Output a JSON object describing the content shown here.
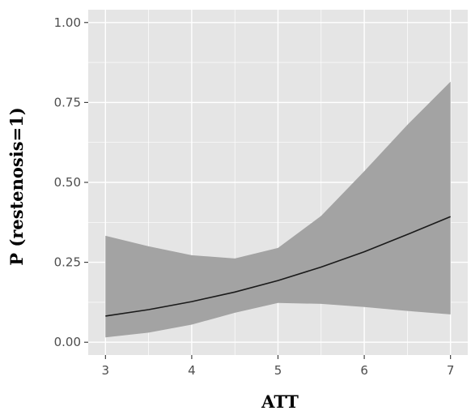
{
  "chart_data": {
    "type": "line",
    "title": "",
    "xlabel": "ATT",
    "ylabel": "P (restenosis=1)",
    "xlim": [
      2.8,
      7.2
    ],
    "ylim": [
      -0.04,
      1.04
    ],
    "x_ticks": [
      3,
      4,
      5,
      6,
      7
    ],
    "x_tick_labels": [
      "3",
      "4",
      "5",
      "6",
      "7"
    ],
    "y_ticks": [
      0,
      0.25,
      0.5,
      0.75,
      1
    ],
    "y_tick_labels": [
      "0.00",
      "0.25",
      "0.50",
      "0.75",
      "1.00"
    ],
    "grid": true,
    "legend": "none",
    "colors": {
      "panel_background": "#e5e5e5",
      "grid": "#ffffff",
      "ribbon": "#a3a3a3",
      "line": "#1a1a1a",
      "tick_text": "#4d4d4d"
    },
    "series": [
      {
        "x": [
          3.0,
          3.5,
          4.0,
          4.5,
          5.0,
          5.5,
          6.0,
          6.5,
          7.0
        ],
        "y": [
          0.082,
          0.102,
          0.127,
          0.157,
          0.193,
          0.235,
          0.283,
          0.337,
          0.393
        ],
        "lower": [
          0.015,
          0.03,
          0.055,
          0.092,
          0.123,
          0.12,
          0.11,
          0.098,
          0.087
        ],
        "upper": [
          0.333,
          0.3,
          0.272,
          0.262,
          0.295,
          0.395,
          0.535,
          0.68,
          0.815
        ]
      }
    ]
  }
}
